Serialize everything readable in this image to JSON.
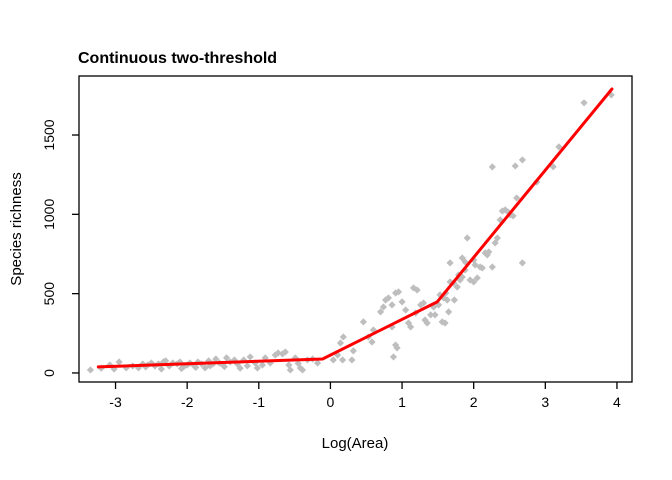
{
  "figure": {
    "background": "#ffffff",
    "box_color": "#000000"
  },
  "chart_data": {
    "type": "scatter",
    "title": "Continuous two-threshold",
    "xlabel": "Log(Area)",
    "ylabel": "Species richness",
    "xlim": [
      -3.51,
      4.21
    ],
    "ylim": [
      -57,
      1872
    ],
    "x_ticks": [
      -3,
      -2,
      -1,
      0,
      1,
      2,
      3,
      4
    ],
    "y_ticks": [
      0,
      500,
      1000,
      1500
    ],
    "grid": false,
    "legend": "none",
    "point_color": "#bebebe",
    "line_color": "#ff0000",
    "series": [
      {
        "name": "species-richness-observations",
        "type": "scatter",
        "marker": "diamond",
        "color": "#bebebe",
        "points": [
          [
            -3.35,
            19
          ],
          [
            -3.2,
            30
          ],
          [
            -3.08,
            50
          ],
          [
            -3.02,
            25
          ],
          [
            -2.95,
            69
          ],
          [
            -2.85,
            32
          ],
          [
            -2.76,
            44
          ],
          [
            -2.68,
            32
          ],
          [
            -2.62,
            57
          ],
          [
            -2.58,
            38
          ],
          [
            -2.55,
            50
          ],
          [
            -2.5,
            63
          ],
          [
            -2.45,
            44
          ],
          [
            -2.4,
            57
          ],
          [
            -2.36,
            25
          ],
          [
            -2.33,
            70
          ],
          [
            -2.3,
            76
          ],
          [
            -2.25,
            44
          ],
          [
            -2.2,
            63
          ],
          [
            -2.14,
            57
          ],
          [
            -2.1,
            69
          ],
          [
            -2.08,
            28
          ],
          [
            -2.05,
            38
          ],
          [
            -2.0,
            50
          ],
          [
            -1.96,
            63
          ],
          [
            -1.9,
            44
          ],
          [
            -1.88,
            35
          ],
          [
            -1.85,
            69
          ],
          [
            -1.8,
            57
          ],
          [
            -1.75,
            32
          ],
          [
            -1.7,
            76
          ],
          [
            -1.68,
            45
          ],
          [
            -1.64,
            57
          ],
          [
            -1.6,
            88
          ],
          [
            -1.55,
            63
          ],
          [
            -1.5,
            50
          ],
          [
            -1.48,
            40
          ],
          [
            -1.45,
            95
          ],
          [
            -1.4,
            69
          ],
          [
            -1.34,
            82
          ],
          [
            -1.3,
            57
          ],
          [
            -1.26,
            30
          ],
          [
            -1.21,
            82
          ],
          [
            -1.16,
            45
          ],
          [
            -1.12,
            101
          ],
          [
            -1.05,
            63
          ],
          [
            -1.02,
            31
          ],
          [
            -0.95,
            50
          ],
          [
            -0.91,
            95
          ],
          [
            -0.84,
            63
          ],
          [
            -0.77,
            113
          ],
          [
            -0.73,
            126
          ],
          [
            -0.67,
            120
          ],
          [
            -0.63,
            132
          ],
          [
            -0.58,
            50
          ],
          [
            -0.56,
            19
          ],
          [
            -0.49,
            95
          ],
          [
            -0.45,
            60
          ],
          [
            -0.42,
            31
          ],
          [
            -0.39,
            19
          ],
          [
            -0.32,
            82
          ],
          [
            -0.25,
            88
          ],
          [
            -0.18,
            63
          ],
          [
            0.04,
            82
          ],
          [
            0.1,
            113
          ],
          [
            0.14,
            189
          ],
          [
            0.17,
            82
          ],
          [
            0.18,
            227
          ],
          [
            0.3,
            82
          ],
          [
            0.32,
            139
          ],
          [
            0.46,
            322
          ],
          [
            0.53,
            227
          ],
          [
            0.58,
            195
          ],
          [
            0.6,
            271
          ],
          [
            0.7,
            385
          ],
          [
            0.74,
            416
          ],
          [
            0.77,
            460
          ],
          [
            0.81,
            473
          ],
          [
            0.86,
            429
          ],
          [
            0.86,
            290
          ],
          [
            0.88,
            101
          ],
          [
            0.91,
            504
          ],
          [
            0.91,
            176
          ],
          [
            0.93,
            158
          ],
          [
            0.95,
            511
          ],
          [
            1.0,
            448
          ],
          [
            1.05,
            397
          ],
          [
            1.09,
            315
          ],
          [
            1.12,
            290
          ],
          [
            1.16,
            536
          ],
          [
            1.19,
            378
          ],
          [
            1.21,
            523
          ],
          [
            1.26,
            429
          ],
          [
            1.3,
            441
          ],
          [
            1.32,
            334
          ],
          [
            1.35,
            315
          ],
          [
            1.4,
            366
          ],
          [
            1.44,
            416
          ],
          [
            1.46,
            366
          ],
          [
            1.51,
            429
          ],
          [
            1.53,
            492
          ],
          [
            1.56,
            322
          ],
          [
            1.58,
            473
          ],
          [
            1.6,
            315
          ],
          [
            1.61,
            504
          ],
          [
            1.63,
            460
          ],
          [
            1.65,
            385
          ],
          [
            1.67,
            574
          ],
          [
            1.67,
            694
          ],
          [
            1.72,
            567
          ],
          [
            1.73,
            460
          ],
          [
            1.77,
            542
          ],
          [
            1.79,
            618
          ],
          [
            1.81,
            586
          ],
          [
            1.84,
            605
          ],
          [
            1.84,
            725
          ],
          [
            1.88,
            649
          ],
          [
            1.88,
            700
          ],
          [
            1.91,
            851
          ],
          [
            1.95,
            586
          ],
          [
            2.0,
            574
          ],
          [
            2.0,
            712
          ],
          [
            2.02,
            681
          ],
          [
            2.05,
            599
          ],
          [
            2.09,
            668
          ],
          [
            2.12,
            662
          ],
          [
            2.16,
            757
          ],
          [
            2.19,
            744
          ],
          [
            2.21,
            763
          ],
          [
            2.26,
            668
          ],
          [
            2.26,
            1299
          ],
          [
            2.3,
            820
          ],
          [
            2.33,
            851
          ],
          [
            2.37,
            965
          ],
          [
            2.4,
            1021
          ],
          [
            2.44,
            1028
          ],
          [
            2.48,
            1015
          ],
          [
            2.51,
            996
          ],
          [
            2.55,
            990
          ],
          [
            2.58,
            1305
          ],
          [
            2.6,
            1103
          ],
          [
            2.68,
            1343
          ],
          [
            2.68,
            694
          ],
          [
            2.88,
            1204
          ],
          [
            3.11,
            1300
          ],
          [
            3.19,
            1425
          ],
          [
            3.54,
            1703
          ],
          [
            3.92,
            1753
          ]
        ]
      },
      {
        "name": "fitted-continuous-two-threshold-model",
        "type": "line",
        "color": "#ff0000",
        "width": 3,
        "vertices": [
          [
            -3.24,
            38
          ],
          [
            -0.11,
            88
          ],
          [
            1.49,
            448
          ],
          [
            3.93,
            1790
          ]
        ]
      }
    ]
  }
}
